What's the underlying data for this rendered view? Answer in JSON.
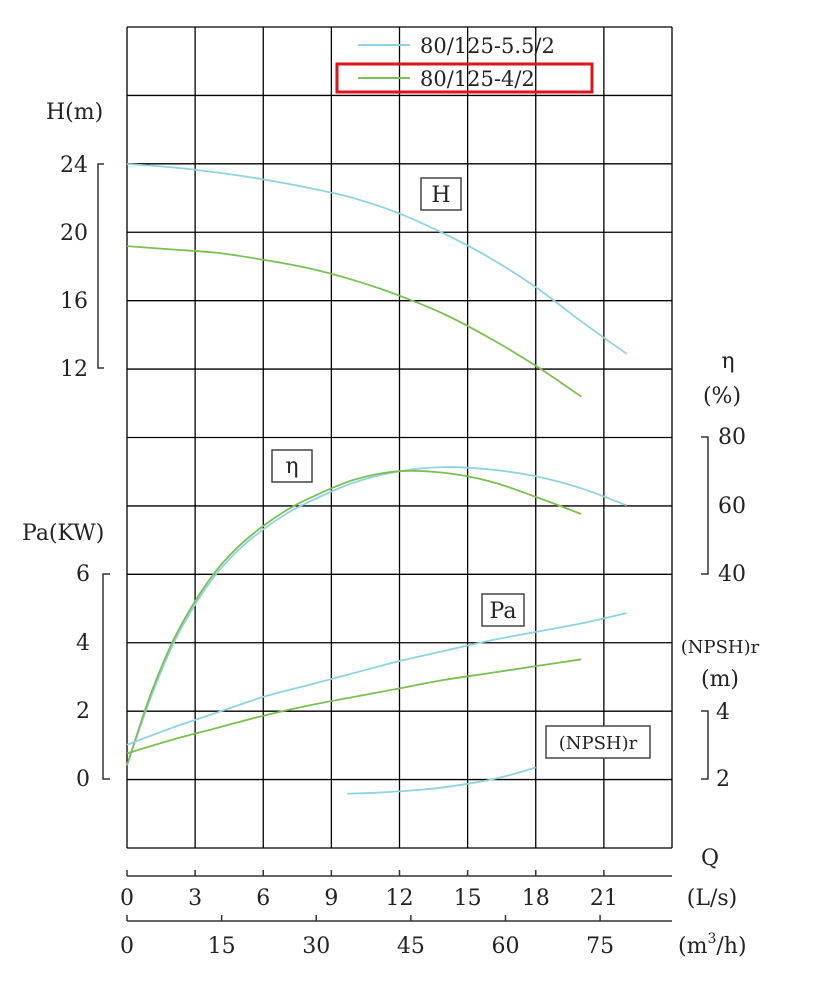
{
  "chart_data": {
    "type": "line",
    "colors": {
      "series_a": "#8fd3e0",
      "series_b": "#7cbf52",
      "grid": "#000000",
      "highlight": "#e0121a"
    },
    "legend": {
      "placement": "top-right",
      "entries": [
        {
          "name": "80/125-5.5/2",
          "color": "#8fd3e0",
          "highlighted": false
        },
        {
          "name": "80/125-4/2",
          "color": "#7cbf52",
          "highlighted": true
        }
      ]
    },
    "x_axis": {
      "title": "Q",
      "unit_ls": "(L/s)",
      "unit_m3h_base": "(m",
      "unit_m3h_sup": "3",
      "unit_m3h_tail": "/h)",
      "ticks_ls": [
        "0",
        "3",
        "6",
        "9",
        "12",
        "15",
        "18",
        "21"
      ],
      "ticks_m3h": [
        "0",
        "15",
        "30",
        "45",
        "60",
        "75"
      ],
      "range_ls": [
        0,
        24
      ]
    },
    "left_axes": {
      "head": {
        "label": "H(m)",
        "ticks": [
          "24",
          "20",
          "16",
          "12"
        ],
        "range": [
          12,
          24
        ]
      },
      "power": {
        "label": "Pa(KW)",
        "ticks": [
          "6",
          "4",
          "2",
          "0"
        ],
        "range": [
          0,
          6
        ]
      }
    },
    "right_axes": {
      "efficiency": {
        "label_top": "η",
        "label_bottom": "(%)",
        "ticks": [
          "80",
          "60",
          "40"
        ],
        "range": [
          40,
          80
        ]
      },
      "npsh": {
        "label_top": "(NPSH)r",
        "label_bottom": "(m)",
        "ticks": [
          "4",
          "2"
        ],
        "range": [
          2,
          4
        ]
      }
    },
    "curve_labels": {
      "head": "H",
      "efficiency": "η",
      "power": "Pa",
      "npsh": "(NPSH)r"
    },
    "grid": true,
    "series": [
      {
        "name": "80/125-5.5/2",
        "quantity": "H",
        "unit": "m",
        "x": [
          0,
          2,
          4,
          6,
          8,
          10,
          12,
          14,
          16,
          18,
          20,
          22
        ],
        "y": [
          24.0,
          23.8,
          23.5,
          23.1,
          22.6,
          22.0,
          21.1,
          19.9,
          18.5,
          16.8,
          14.8,
          12.9
        ]
      },
      {
        "name": "80/125-4/2",
        "quantity": "H",
        "unit": "m",
        "x": [
          0,
          2,
          4,
          6,
          8,
          10,
          12,
          14,
          16,
          18,
          20
        ],
        "y": [
          19.2,
          19.0,
          18.8,
          18.4,
          17.9,
          17.2,
          16.3,
          15.2,
          13.8,
          12.2,
          10.4
        ]
      },
      {
        "name": "80/125-5.5/2",
        "quantity": "η",
        "unit": "%",
        "x": [
          0,
          1,
          2,
          3,
          4,
          5,
          6,
          7,
          8,
          10,
          12,
          14,
          16,
          18,
          20,
          22
        ],
        "y": [
          -16,
          3,
          19,
          31,
          40.5,
          47.5,
          53,
          57.5,
          61,
          66.7,
          70,
          71.2,
          70.5,
          68.5,
          65,
          60
        ]
      },
      {
        "name": "80/125-4/2",
        "quantity": "η",
        "unit": "%",
        "x": [
          0,
          1,
          2,
          3,
          4,
          5,
          6,
          7,
          8,
          10,
          12,
          14,
          16,
          18,
          20
        ],
        "y": [
          -16,
          4,
          20,
          32,
          41.5,
          48.5,
          54,
          58.5,
          62,
          67.5,
          70,
          69.5,
          67,
          62.5,
          57.5
        ]
      },
      {
        "name": "80/125-5.5/2",
        "quantity": "Pa",
        "unit": "KW",
        "x": [
          0,
          2,
          4,
          6,
          8,
          10,
          12,
          14,
          16,
          18,
          20,
          22
        ],
        "y": [
          1.0,
          1.5,
          1.95,
          2.4,
          2.75,
          3.1,
          3.45,
          3.75,
          4.05,
          4.3,
          4.55,
          4.85
        ]
      },
      {
        "name": "80/125-4/2",
        "quantity": "Pa",
        "unit": "KW",
        "x": [
          0,
          2,
          4,
          6,
          8,
          10,
          12,
          14,
          16,
          18,
          20
        ],
        "y": [
          0.75,
          1.15,
          1.5,
          1.85,
          2.15,
          2.4,
          2.65,
          2.9,
          3.1,
          3.3,
          3.5
        ]
      },
      {
        "name": "80/125-5.5/2",
        "quantity": "(NPSH)r",
        "unit": "m",
        "x": [
          9.7,
          11,
          12,
          13,
          14,
          15,
          16,
          17,
          18
        ],
        "y": [
          1.57,
          1.6,
          1.64,
          1.69,
          1.76,
          1.86,
          1.98,
          2.14,
          2.34
        ]
      }
    ]
  }
}
